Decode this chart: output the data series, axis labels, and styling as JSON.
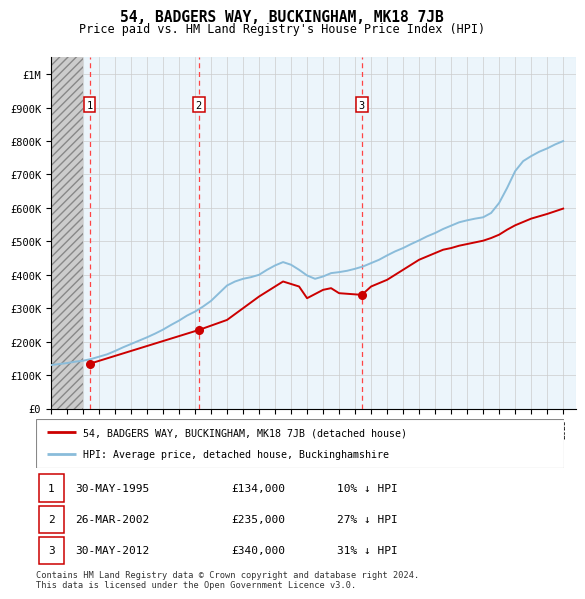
{
  "title": "54, BADGERS WAY, BUCKINGHAM, MK18 7JB",
  "subtitle": "Price paid vs. HM Land Registry's House Price Index (HPI)",
  "transactions": [
    {
      "id": 1,
      "date": 1995.42,
      "price": 134000,
      "label": "30-MAY-1995",
      "pct": "10% ↓ HPI"
    },
    {
      "id": 2,
      "date": 2002.24,
      "price": 235000,
      "label": "26-MAR-2002",
      "pct": "27% ↓ HPI"
    },
    {
      "id": 3,
      "date": 2012.42,
      "price": 340000,
      "label": "30-MAY-2012",
      "pct": "31% ↓ HPI"
    }
  ],
  "hpi_line_color": "#8abcda",
  "price_line_color": "#cc0000",
  "transaction_marker_color": "#cc0000",
  "dashed_line_color": "#ff4444",
  "grid_color": "#cccccc",
  "legend_label_red": "54, BADGERS WAY, BUCKINGHAM, MK18 7JB (detached house)",
  "legend_label_blue": "HPI: Average price, detached house, Buckinghamshire",
  "footer": "Contains HM Land Registry data © Crown copyright and database right 2024.\nThis data is licensed under the Open Government Licence v3.0.",
  "ylim": [
    0,
    1050000
  ],
  "yticks": [
    0,
    100000,
    200000,
    300000,
    400000,
    500000,
    600000,
    700000,
    800000,
    900000,
    1000000
  ],
  "ytick_labels": [
    "£0",
    "£100K",
    "£200K",
    "£300K",
    "£400K",
    "£500K",
    "£600K",
    "£700K",
    "£800K",
    "£900K",
    "£1M"
  ],
  "xlim_left": 1993.0,
  "xlim_right": 2025.8,
  "hatch_end": 1995.0,
  "hpi_years": [
    1993.0,
    1993.5,
    1994.0,
    1994.5,
    1995.0,
    1995.5,
    1996.0,
    1996.5,
    1997.0,
    1997.5,
    1998.0,
    1998.5,
    1999.0,
    1999.5,
    2000.0,
    2000.5,
    2001.0,
    2001.5,
    2002.0,
    2002.5,
    2003.0,
    2003.5,
    2004.0,
    2004.5,
    2005.0,
    2005.5,
    2006.0,
    2006.5,
    2007.0,
    2007.5,
    2008.0,
    2008.5,
    2009.0,
    2009.5,
    2010.0,
    2010.5,
    2011.0,
    2011.5,
    2012.0,
    2012.5,
    2013.0,
    2013.5,
    2014.0,
    2014.5,
    2015.0,
    2015.5,
    2016.0,
    2016.5,
    2017.0,
    2017.5,
    2018.0,
    2018.5,
    2019.0,
    2019.5,
    2020.0,
    2020.5,
    2021.0,
    2021.5,
    2022.0,
    2022.5,
    2023.0,
    2023.5,
    2024.0,
    2024.5,
    2025.0
  ],
  "hpi_values": [
    130000,
    133000,
    136000,
    140000,
    143000,
    148000,
    155000,
    162000,
    172000,
    183000,
    193000,
    203000,
    213000,
    224000,
    236000,
    250000,
    263000,
    278000,
    290000,
    305000,
    322000,
    345000,
    368000,
    380000,
    388000,
    393000,
    400000,
    415000,
    428000,
    438000,
    430000,
    415000,
    398000,
    388000,
    395000,
    405000,
    408000,
    412000,
    418000,
    425000,
    435000,
    445000,
    458000,
    470000,
    480000,
    492000,
    503000,
    515000,
    525000,
    537000,
    547000,
    557000,
    563000,
    568000,
    572000,
    585000,
    615000,
    660000,
    710000,
    740000,
    755000,
    768000,
    778000,
    790000,
    800000
  ],
  "price_years": [
    1995.42,
    2002.24,
    2004.0,
    2006.0,
    2007.5,
    2008.5,
    2009.0,
    2010.0,
    2010.5,
    2011.0,
    2012.42,
    2013.0,
    2014.0,
    2015.0,
    2016.0,
    2017.0,
    2017.5,
    2018.0,
    2018.5,
    2019.0,
    2019.5,
    2020.0,
    2020.5,
    2021.0,
    2021.5,
    2022.0,
    2022.5,
    2023.0,
    2023.5,
    2024.0,
    2024.5,
    2025.0
  ],
  "price_values": [
    134000,
    235000,
    265000,
    335000,
    380000,
    365000,
    330000,
    355000,
    360000,
    345000,
    340000,
    365000,
    385000,
    415000,
    445000,
    465000,
    475000,
    480000,
    487000,
    492000,
    497000,
    502000,
    510000,
    520000,
    535000,
    548000,
    558000,
    568000,
    575000,
    582000,
    590000,
    598000
  ]
}
